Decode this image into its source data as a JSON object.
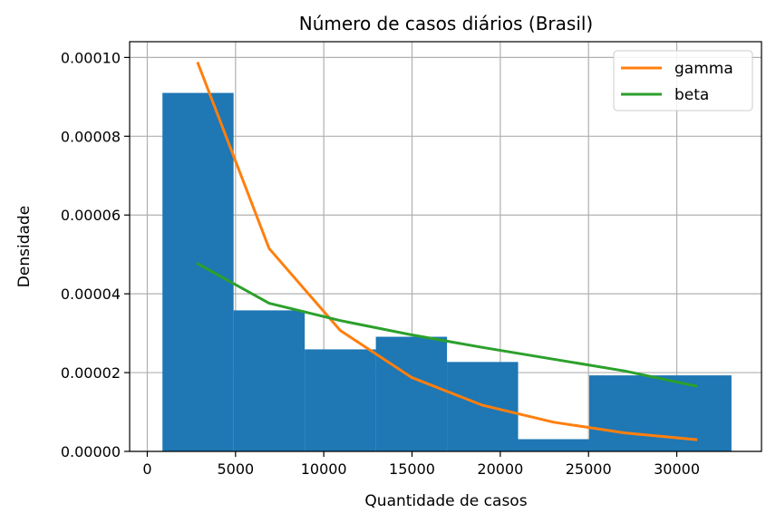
{
  "chart_data": {
    "type": "bar",
    "title": "Número de casos diários (Brasil)",
    "xlabel": "Quantidade de casos",
    "ylabel": "Densidade",
    "xlim": [
      -1000,
      34800
    ],
    "ylim": [
      0,
      0.000104
    ],
    "grid": true,
    "legend_position": "top-right",
    "x_ticks": [
      {
        "value": 0,
        "label": "0"
      },
      {
        "value": 5000,
        "label": "5000"
      },
      {
        "value": 10000,
        "label": "10000"
      },
      {
        "value": 15000,
        "label": "15000"
      },
      {
        "value": 20000,
        "label": "20000"
      },
      {
        "value": 25000,
        "label": "25000"
      },
      {
        "value": 30000,
        "label": "30000"
      }
    ],
    "y_ticks": [
      {
        "value": 0,
        "label": "0.00000"
      },
      {
        "value": 2e-05,
        "label": "0.00002"
      },
      {
        "value": 4e-05,
        "label": "0.00004"
      },
      {
        "value": 6e-05,
        "label": "0.00006"
      },
      {
        "value": 8e-05,
        "label": "0.00008"
      },
      {
        "value": 0.0001,
        "label": "0.00010"
      }
    ],
    "histogram": {
      "color": "#1f77b4",
      "bins": [
        {
          "start": 860,
          "end": 4890,
          "density": 9.1e-05
        },
        {
          "start": 4890,
          "end": 8920,
          "density": 3.58e-05
        },
        {
          "start": 8920,
          "end": 12950,
          "density": 2.59e-05
        },
        {
          "start": 12950,
          "end": 16980,
          "density": 2.91e-05
        },
        {
          "start": 16980,
          "end": 21010,
          "density": 2.27e-05
        },
        {
          "start": 21010,
          "end": 25040,
          "density": 3.1e-06
        },
        {
          "start": 25040,
          "end": 33100,
          "density": 1.93e-05
        }
      ]
    },
    "series": [
      {
        "name": "gamma",
        "color": "#ff7f0e",
        "x": [
          2875,
          6905,
          10935,
          14965,
          18995,
          23025,
          27055,
          31085
        ],
        "values": [
          9.85e-05,
          5.15e-05,
          3.07e-05,
          1.88e-05,
          1.17e-05,
          7.4e-06,
          4.7e-06,
          3e-06
        ]
      },
      {
        "name": "beta",
        "color": "#2ca02c",
        "x": [
          2875,
          6905,
          10935,
          14965,
          18995,
          23025,
          27055,
          31085
        ],
        "values": [
          4.76e-05,
          3.76e-05,
          3.32e-05,
          2.96e-05,
          2.64e-05,
          2.34e-05,
          2.04e-05,
          1.66e-05
        ]
      }
    ]
  }
}
